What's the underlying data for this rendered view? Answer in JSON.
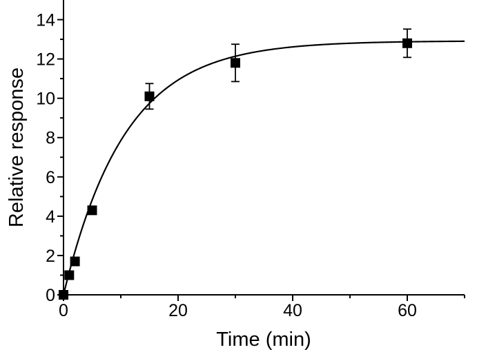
{
  "chart_data": {
    "type": "scatter",
    "xlabel": "Time (min)",
    "ylabel": "Relative response",
    "xlim": [
      0,
      70
    ],
    "ylim": [
      0,
      15
    ],
    "x_ticks": [
      0,
      20,
      40,
      60
    ],
    "x_minor_ticks": [
      10,
      30,
      50,
      70
    ],
    "y_ticks": [
      0,
      2,
      4,
      6,
      8,
      10,
      12,
      14
    ],
    "y_minor_ticks": [
      1,
      3,
      5,
      7,
      9,
      11,
      13
    ],
    "grid": false,
    "legend": "none",
    "series": [
      {
        "marker": "square",
        "color": "#000000",
        "points": [
          {
            "x": 0,
            "y": 0,
            "err": 0
          },
          {
            "x": 1,
            "y": 1.0,
            "err": 0
          },
          {
            "x": 2,
            "y": 1.7,
            "err": 0
          },
          {
            "x": 5,
            "y": 4.3,
            "err": 0
          },
          {
            "x": 15,
            "y": 10.1,
            "err": 0.65
          },
          {
            "x": 30,
            "y": 11.8,
            "err": 0.95
          },
          {
            "x": 60,
            "y": 12.8,
            "err": 0.72
          }
        ]
      }
    ],
    "fit_curve": {
      "model": "exponential_rise",
      "plateau": 12.92,
      "rate": 0.0935,
      "color": "#000000"
    }
  }
}
